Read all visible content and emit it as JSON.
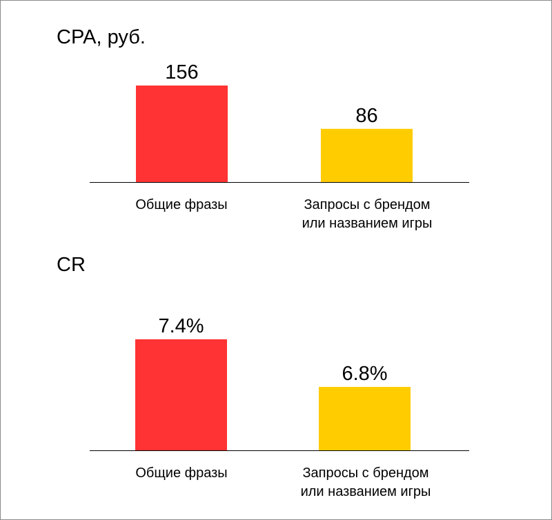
{
  "chart_data": [
    {
      "type": "bar",
      "title": "CPA, руб.",
      "categories": [
        "Общие фразы",
        "Запросы с брендом\nили названием игры"
      ],
      "values": [
        156,
        86
      ],
      "value_labels": [
        "156",
        "86"
      ],
      "colors": [
        "#ff3333",
        "#ffcc00"
      ],
      "ylim": [
        0,
        156
      ],
      "grid": false,
      "legend": "none"
    },
    {
      "type": "bar",
      "title": "CR",
      "categories": [
        "Общие фразы",
        "Запросы с брендом\nили названием игры"
      ],
      "values": [
        7.4,
        6.8
      ],
      "value_labels": [
        "7.4%",
        "6.8%"
      ],
      "colors": [
        "#ff3333",
        "#ffcc00"
      ],
      "ylim": [
        6.0,
        7.4
      ],
      "grid": false,
      "legend": "none"
    }
  ]
}
